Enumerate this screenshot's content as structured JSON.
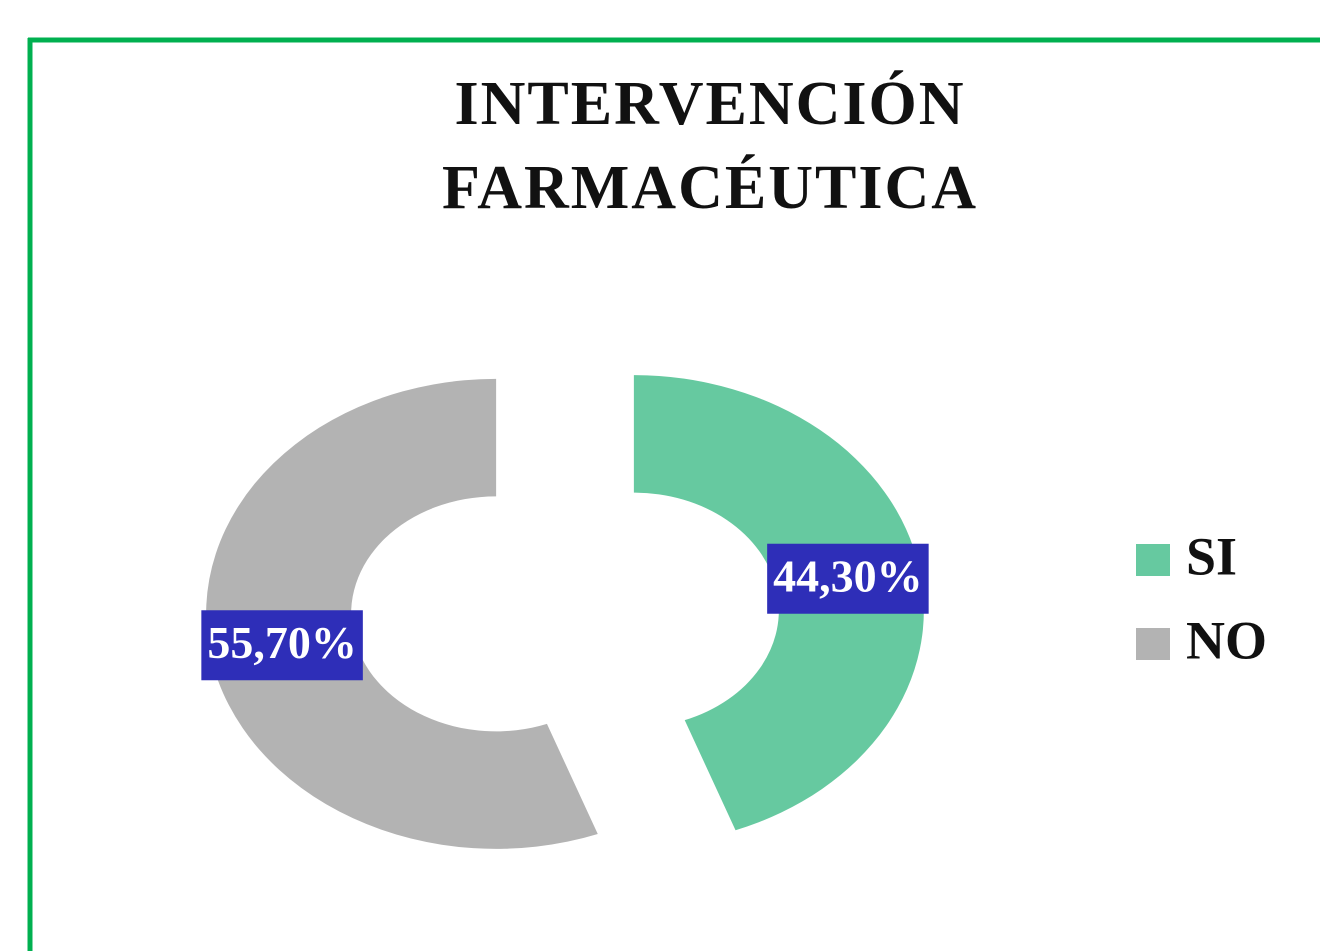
{
  "chart_data": {
    "type": "donut",
    "title": "INTERVENCIÓN FARMACÉUTICA",
    "categories": [
      "SI",
      "NO"
    ],
    "values": [
      44.3,
      55.7
    ],
    "value_labels": [
      "44,30%",
      "55,70%"
    ],
    "colors": [
      "#66c9a0",
      "#b3b3b3"
    ],
    "legend": "right"
  }
}
